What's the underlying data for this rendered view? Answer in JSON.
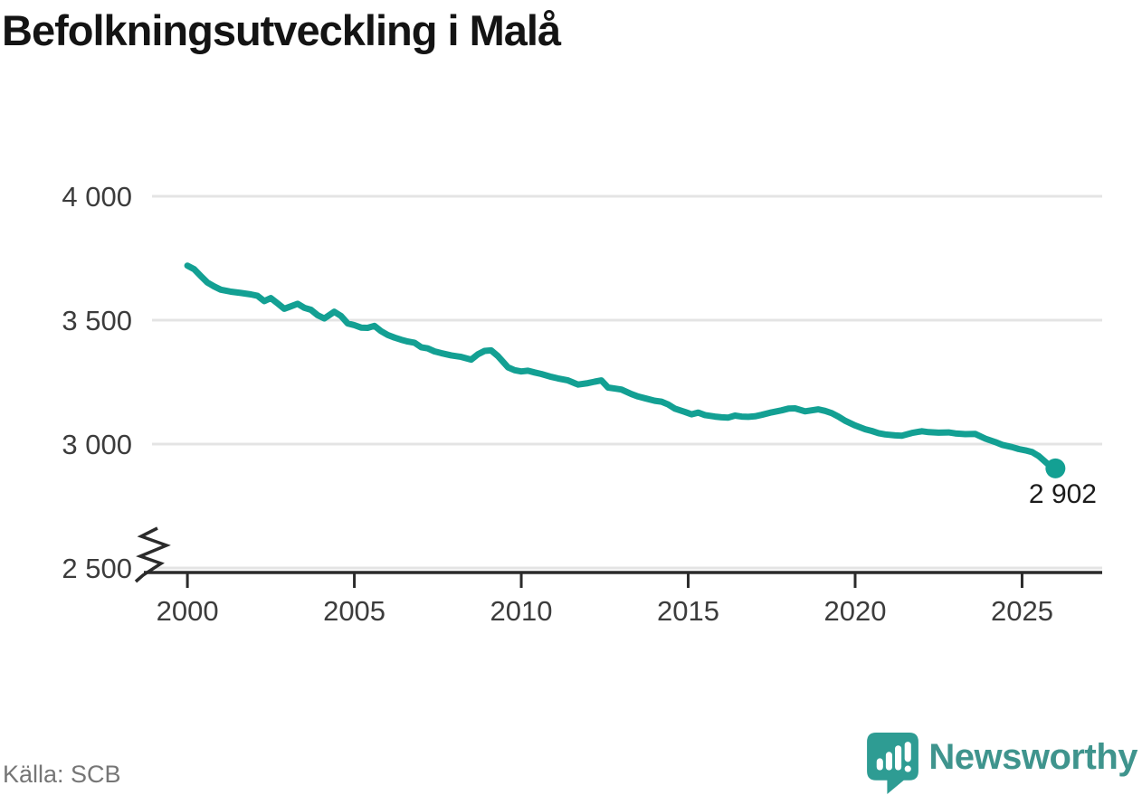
{
  "title": "Befolkningsutveckling i Malå",
  "source": "Källa: SCB",
  "logo": {
    "text": "Newsworthy"
  },
  "colors": {
    "line": "#13A093",
    "grid": "#E4E4E4",
    "axis": "#2B2B2B",
    "tick_label": "#3C3C3C",
    "title": "#141414",
    "source": "#767676",
    "end_label": "#1B1B1B",
    "logo_icon": "#2E9C93",
    "logo_text": "#3F948D",
    "logo_glyph": "#FFFFFF"
  },
  "chart_data": {
    "type": "line",
    "title": "Befolkningsutveckling i Malå",
    "xlabel": "",
    "ylabel": "",
    "x_range": [
      1998.94,
      2027.4
    ],
    "y_shown_range": [
      2500,
      4000
    ],
    "axis_break": true,
    "grid": "horizontal",
    "legend": "none",
    "end_label": "2 902",
    "last_value": 2902,
    "x_ticks": [
      {
        "value": 2000,
        "label": "2000"
      },
      {
        "value": 2005,
        "label": "2005"
      },
      {
        "value": 2010,
        "label": "2010"
      },
      {
        "value": 2015,
        "label": "2015"
      },
      {
        "value": 2020,
        "label": "2020"
      },
      {
        "value": 2025,
        "label": "2025"
      }
    ],
    "y_ticks": [
      {
        "value": 2500,
        "label": "2 500"
      },
      {
        "value": 3000,
        "label": "3 000"
      },
      {
        "value": 3500,
        "label": "3 500"
      },
      {
        "value": 4000,
        "label": "4 000"
      }
    ],
    "series_name": "Befolkning i Malå",
    "points": [
      [
        2000.0,
        3720
      ],
      [
        2000.2,
        3706
      ],
      [
        2000.4,
        3678
      ],
      [
        2000.6,
        3652
      ],
      [
        2000.8,
        3636
      ],
      [
        2001.0,
        3623
      ],
      [
        2001.3,
        3615
      ],
      [
        2001.6,
        3610
      ],
      [
        2001.9,
        3604
      ],
      [
        2002.1,
        3598
      ],
      [
        2002.3,
        3577
      ],
      [
        2002.5,
        3589
      ],
      [
        2002.7,
        3568
      ],
      [
        2002.9,
        3546
      ],
      [
        2003.1,
        3556
      ],
      [
        2003.3,
        3566
      ],
      [
        2003.5,
        3550
      ],
      [
        2003.7,
        3542
      ],
      [
        2003.9,
        3520
      ],
      [
        2004.1,
        3507
      ],
      [
        2004.4,
        3534
      ],
      [
        2004.6,
        3517
      ],
      [
        2004.8,
        3487
      ],
      [
        2005.0,
        3480
      ],
      [
        2005.2,
        3470
      ],
      [
        2005.4,
        3469
      ],
      [
        2005.6,
        3477
      ],
      [
        2005.8,
        3456
      ],
      [
        2006.0,
        3440
      ],
      [
        2006.2,
        3430
      ],
      [
        2006.4,
        3421
      ],
      [
        2006.6,
        3414
      ],
      [
        2006.8,
        3409
      ],
      [
        2007.0,
        3391
      ],
      [
        2007.2,
        3386
      ],
      [
        2007.4,
        3374
      ],
      [
        2007.6,
        3367
      ],
      [
        2007.9,
        3358
      ],
      [
        2008.2,
        3352
      ],
      [
        2008.5,
        3341
      ],
      [
        2008.7,
        3362
      ],
      [
        2008.9,
        3376
      ],
      [
        2009.1,
        3378
      ],
      [
        2009.3,
        3355
      ],
      [
        2009.6,
        3310
      ],
      [
        2009.8,
        3298
      ],
      [
        2010.0,
        3293
      ],
      [
        2010.2,
        3296
      ],
      [
        2010.4,
        3289
      ],
      [
        2010.6,
        3283
      ],
      [
        2010.9,
        3271
      ],
      [
        2011.1,
        3265
      ],
      [
        2011.4,
        3257
      ],
      [
        2011.7,
        3240
      ],
      [
        2012.0,
        3246
      ],
      [
        2012.2,
        3252
      ],
      [
        2012.4,
        3257
      ],
      [
        2012.6,
        3228
      ],
      [
        2012.8,
        3224
      ],
      [
        2013.0,
        3220
      ],
      [
        2013.3,
        3202
      ],
      [
        2013.5,
        3192
      ],
      [
        2013.7,
        3185
      ],
      [
        2014.0,
        3175
      ],
      [
        2014.2,
        3171
      ],
      [
        2014.4,
        3160
      ],
      [
        2014.6,
        3143
      ],
      [
        2014.9,
        3130
      ],
      [
        2015.1,
        3120
      ],
      [
        2015.3,
        3127
      ],
      [
        2015.5,
        3117
      ],
      [
        2015.8,
        3111
      ],
      [
        2016.0,
        3108
      ],
      [
        2016.2,
        3107
      ],
      [
        2016.4,
        3115
      ],
      [
        2016.6,
        3111
      ],
      [
        2016.8,
        3110
      ],
      [
        2017.0,
        3112
      ],
      [
        2017.2,
        3118
      ],
      [
        2017.5,
        3128
      ],
      [
        2017.8,
        3136
      ],
      [
        2018.0,
        3143
      ],
      [
        2018.2,
        3144
      ],
      [
        2018.5,
        3132
      ],
      [
        2018.7,
        3136
      ],
      [
        2018.9,
        3140
      ],
      [
        2019.1,
        3134
      ],
      [
        2019.3,
        3125
      ],
      [
        2019.5,
        3111
      ],
      [
        2019.7,
        3094
      ],
      [
        2020.0,
        3075
      ],
      [
        2020.3,
        3060
      ],
      [
        2020.5,
        3053
      ],
      [
        2020.7,
        3044
      ],
      [
        2020.9,
        3039
      ],
      [
        2021.2,
        3035
      ],
      [
        2021.4,
        3034
      ],
      [
        2021.7,
        3045
      ],
      [
        2022.0,
        3052
      ],
      [
        2022.2,
        3048
      ],
      [
        2022.5,
        3046
      ],
      [
        2022.8,
        3047
      ],
      [
        2023.0,
        3043
      ],
      [
        2023.3,
        3040
      ],
      [
        2023.6,
        3041
      ],
      [
        2023.9,
        3022
      ],
      [
        2024.2,
        3008
      ],
      [
        2024.4,
        2997
      ],
      [
        2024.7,
        2988
      ],
      [
        2024.9,
        2980
      ],
      [
        2025.1,
        2975
      ],
      [
        2025.3,
        2968
      ],
      [
        2025.5,
        2952
      ],
      [
        2025.7,
        2928
      ],
      [
        2025.85,
        2910
      ],
      [
        2026.0,
        2902
      ]
    ]
  }
}
